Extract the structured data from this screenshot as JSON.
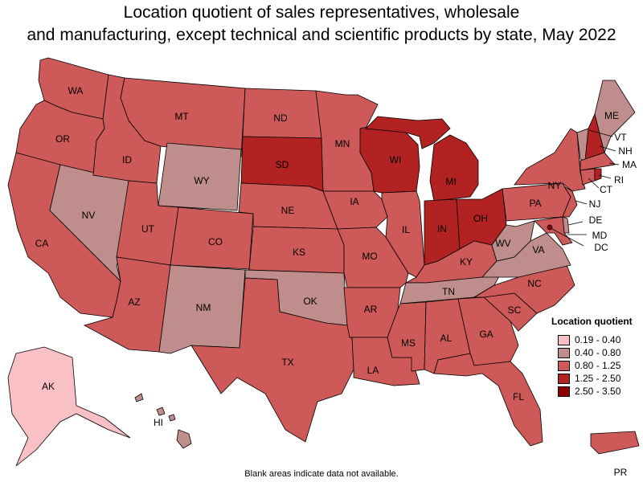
{
  "title": {
    "line1": "Location quotient of sales representatives, wholesale",
    "line2": "and manufacturing, except technical and scientific products by state, May 2022"
  },
  "legend": {
    "title": "Location quotient",
    "bins": [
      {
        "label": "0.19 - 0.40",
        "color": "#f9c0c6"
      },
      {
        "label": "0.40 - 0.80",
        "color": "#bf8e8c"
      },
      {
        "label": "0.80 - 1.25",
        "color": "#cd5959"
      },
      {
        "label": "1.25 - 2.50",
        "color": "#b22222"
      },
      {
        "label": "2.50 - 3.50",
        "color": "#8b0000"
      }
    ]
  },
  "footnote": "Blank areas indicate data not available.",
  "states": {
    "WA": 2,
    "OR": 2,
    "CA": 2,
    "NV": 1,
    "ID": 2,
    "MT": 2,
    "WY": 1,
    "UT": 2,
    "AZ": 2,
    "CO": 2,
    "NM": 1,
    "ND": 2,
    "SD": 3,
    "NE": 2,
    "KS": 2,
    "OK": 1,
    "TX": 2,
    "MN": 2,
    "IA": 2,
    "MO": 2,
    "AR": 2,
    "LA": 2,
    "WI": 3,
    "IL": 2,
    "MI": 3,
    "IN": 3,
    "OH": 3,
    "KY": 2,
    "TN": 1,
    "MS": 2,
    "AL": 2,
    "GA": 2,
    "FL": 2,
    "SC": 2,
    "NC": 2,
    "VA": 1,
    "WV": 1,
    "PA": 2,
    "NY": 2,
    "ME": 1,
    "VT": 1,
    "NH": 3,
    "MA": 2,
    "RI": 3,
    "CT": 2,
    "NJ": 2,
    "DE": 1,
    "MD": 2,
    "DC": 4,
    "AK": 0,
    "HI": 1,
    "PR": 2
  }
}
